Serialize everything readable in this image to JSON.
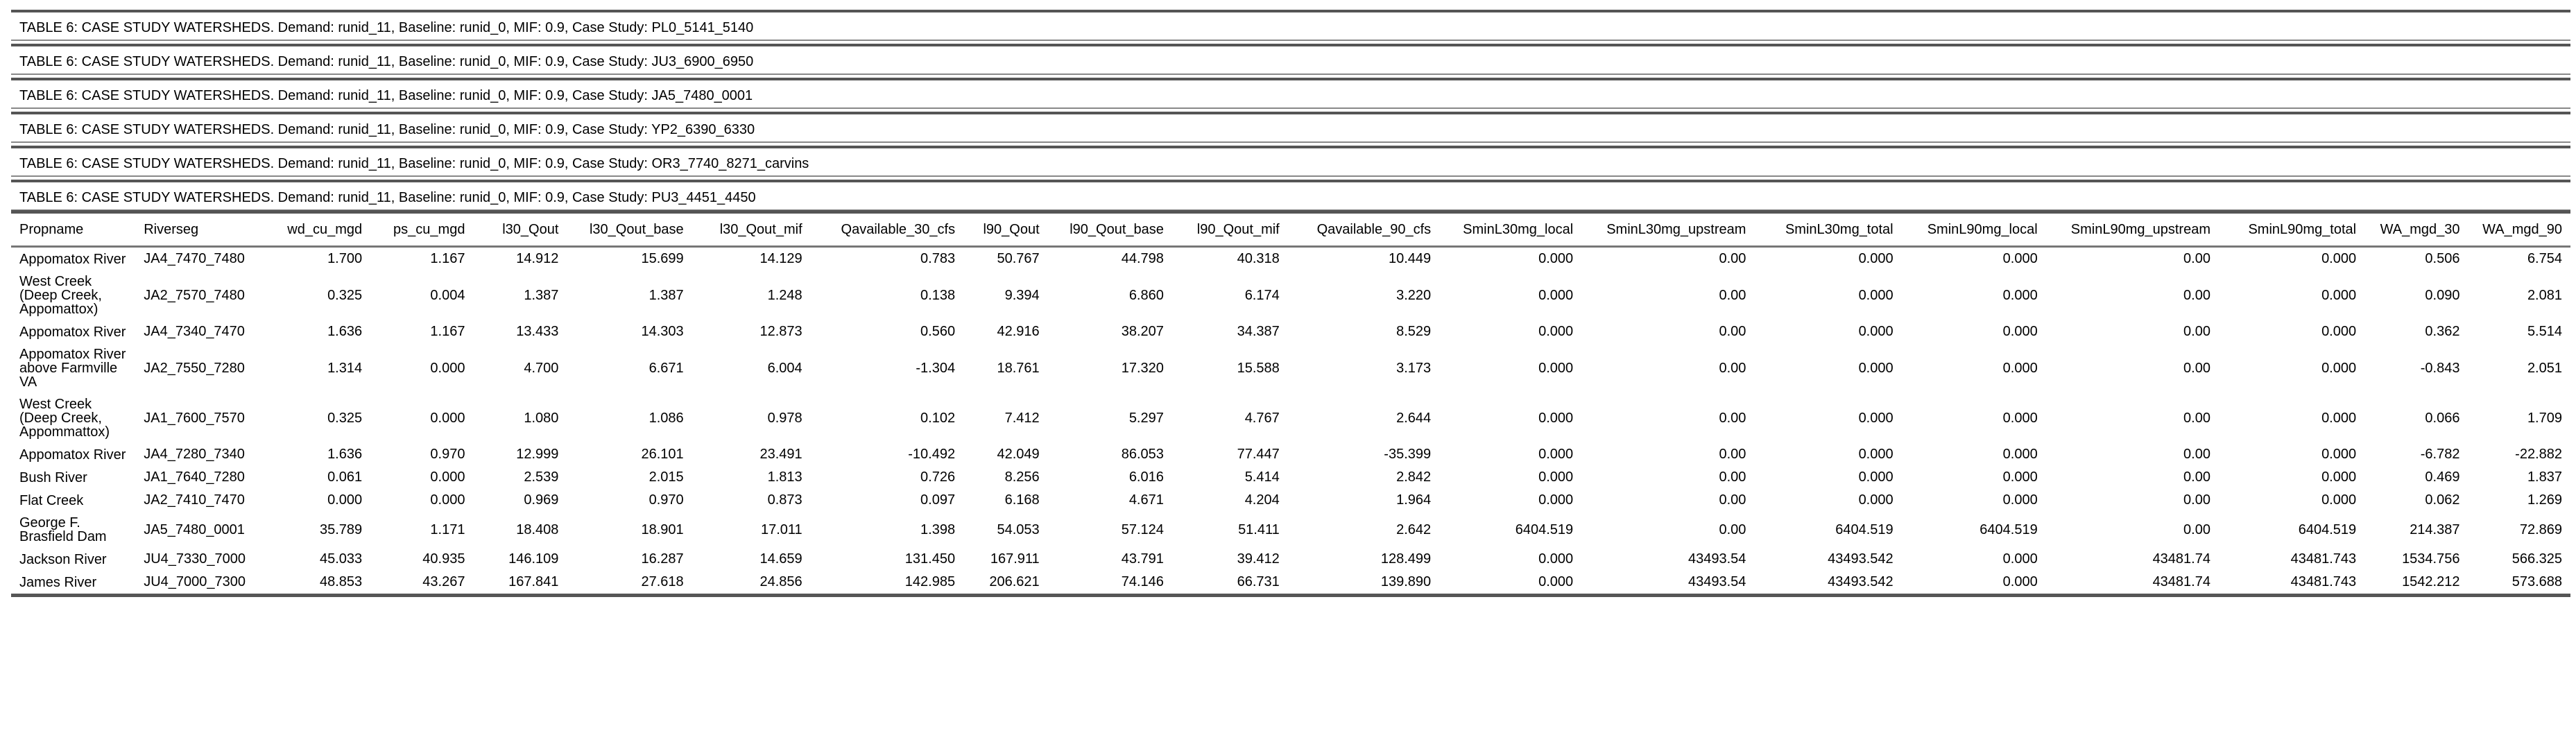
{
  "captions": [
    "TABLE 6: CASE STUDY WATERSHEDS. Demand: runid_11, Baseline: runid_0, MIF: 0.9, Case Study: PL0_5141_5140",
    "TABLE 6: CASE STUDY WATERSHEDS. Demand: runid_11, Baseline: runid_0, MIF: 0.9, Case Study: JU3_6900_6950",
    "TABLE 6: CASE STUDY WATERSHEDS. Demand: runid_11, Baseline: runid_0, MIF: 0.9, Case Study: JA5_7480_0001",
    "TABLE 6: CASE STUDY WATERSHEDS. Demand: runid_11, Baseline: runid_0, MIF: 0.9, Case Study: YP2_6390_6330",
    "TABLE 6: CASE STUDY WATERSHEDS. Demand: runid_11, Baseline: runid_0, MIF: 0.9, Case Study: OR3_7740_8271_carvins",
    "TABLE 6: CASE STUDY WATERSHEDS. Demand: runid_11, Baseline: runid_0, MIF: 0.9, Case Study: PU3_4451_4450"
  ],
  "table": {
    "columns": [
      "Propname",
      "Riverseg",
      "wd_cu_mgd",
      "ps_cu_mgd",
      "l30_Qout",
      "l30_Qout_base",
      "l30_Qout_mif",
      "Qavailable_30_cfs",
      "l90_Qout",
      "l90_Qout_base",
      "l90_Qout_mif",
      "Qavailable_90_cfs",
      "SminL30mg_local",
      "SminL30mg_upstream",
      "SminL30mg_total",
      "SminL90mg_local",
      "SminL90mg_upstream",
      "SminL90mg_total",
      "WA_mgd_30",
      "WA_mgd_90"
    ],
    "rows": [
      [
        "Appomatox River",
        "JA4_7470_7480",
        "1.700",
        "1.167",
        "14.912",
        "15.699",
        "14.129",
        "0.783",
        "50.767",
        "44.798",
        "40.318",
        "10.449",
        "0.000",
        "0.00",
        "0.000",
        "0.000",
        "0.00",
        "0.000",
        "0.506",
        "6.754"
      ],
      [
        "West Creek (Deep Creek, Appomattox)",
        "JA2_7570_7480",
        "0.325",
        "0.004",
        "1.387",
        "1.387",
        "1.248",
        "0.138",
        "9.394",
        "6.860",
        "6.174",
        "3.220",
        "0.000",
        "0.00",
        "0.000",
        "0.000",
        "0.00",
        "0.000",
        "0.090",
        "2.081"
      ],
      [
        "Appomatox River",
        "JA4_7340_7470",
        "1.636",
        "1.167",
        "13.433",
        "14.303",
        "12.873",
        "0.560",
        "42.916",
        "38.207",
        "34.387",
        "8.529",
        "0.000",
        "0.00",
        "0.000",
        "0.000",
        "0.00",
        "0.000",
        "0.362",
        "5.514"
      ],
      [
        "Appomatox River above Farmville VA",
        "JA2_7550_7280",
        "1.314",
        "0.000",
        "4.700",
        "6.671",
        "6.004",
        "-1.304",
        "18.761",
        "17.320",
        "15.588",
        "3.173",
        "0.000",
        "0.00",
        "0.000",
        "0.000",
        "0.00",
        "0.000",
        "-0.843",
        "2.051"
      ],
      [
        "West Creek (Deep Creek, Appommattox)",
        "JA1_7600_7570",
        "0.325",
        "0.000",
        "1.080",
        "1.086",
        "0.978",
        "0.102",
        "7.412",
        "5.297",
        "4.767",
        "2.644",
        "0.000",
        "0.00",
        "0.000",
        "0.000",
        "0.00",
        "0.000",
        "0.066",
        "1.709"
      ],
      [
        "Appomatox River",
        "JA4_7280_7340",
        "1.636",
        "0.970",
        "12.999",
        "26.101",
        "23.491",
        "-10.492",
        "42.049",
        "86.053",
        "77.447",
        "-35.399",
        "0.000",
        "0.00",
        "0.000",
        "0.000",
        "0.00",
        "0.000",
        "-6.782",
        "-22.882"
      ],
      [
        "Bush River",
        "JA1_7640_7280",
        "0.061",
        "0.000",
        "2.539",
        "2.015",
        "1.813",
        "0.726",
        "8.256",
        "6.016",
        "5.414",
        "2.842",
        "0.000",
        "0.00",
        "0.000",
        "0.000",
        "0.00",
        "0.000",
        "0.469",
        "1.837"
      ],
      [
        "Flat Creek",
        "JA2_7410_7470",
        "0.000",
        "0.000",
        "0.969",
        "0.970",
        "0.873",
        "0.097",
        "6.168",
        "4.671",
        "4.204",
        "1.964",
        "0.000",
        "0.00",
        "0.000",
        "0.000",
        "0.00",
        "0.000",
        "0.062",
        "1.269"
      ],
      [
        "George F. Brasfield Dam",
        "JA5_7480_0001",
        "35.789",
        "1.171",
        "18.408",
        "18.901",
        "17.011",
        "1.398",
        "54.053",
        "57.124",
        "51.411",
        "2.642",
        "6404.519",
        "0.00",
        "6404.519",
        "6404.519",
        "0.00",
        "6404.519",
        "214.387",
        "72.869"
      ],
      [
        "Jackson River",
        "JU4_7330_7000",
        "45.033",
        "40.935",
        "146.109",
        "16.287",
        "14.659",
        "131.450",
        "167.911",
        "43.791",
        "39.412",
        "128.499",
        "0.000",
        "43493.54",
        "43493.542",
        "0.000",
        "43481.74",
        "43481.743",
        "1534.756",
        "566.325"
      ],
      [
        "James River",
        "JU4_7000_7300",
        "48.853",
        "43.267",
        "167.841",
        "27.618",
        "24.856",
        "142.985",
        "206.621",
        "74.146",
        "66.731",
        "139.890",
        "0.000",
        "43493.54",
        "43493.542",
        "0.000",
        "43481.74",
        "43481.743",
        "1542.212",
        "573.688"
      ]
    ]
  }
}
